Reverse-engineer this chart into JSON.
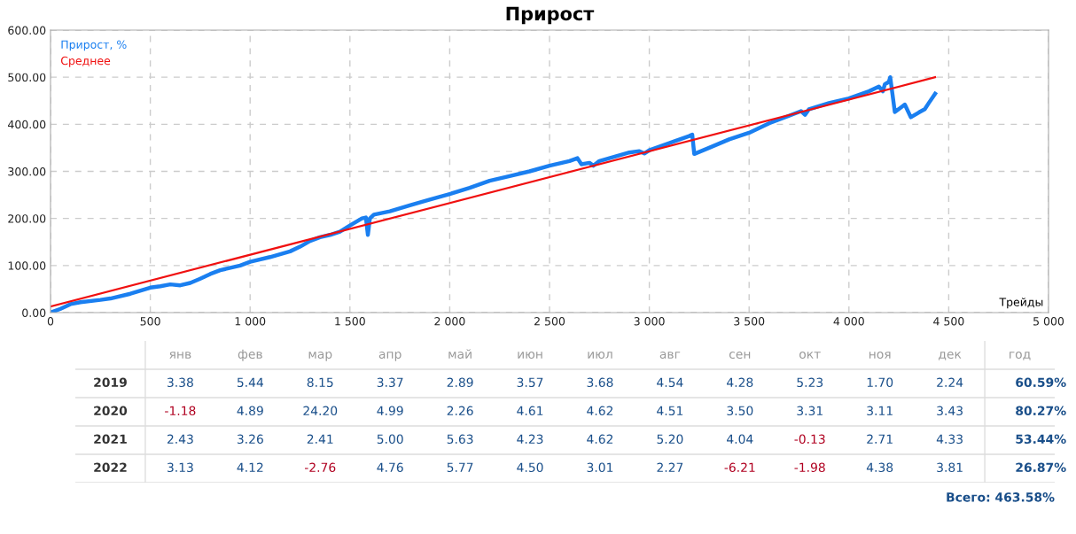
{
  "chart_data": [
    {
      "type": "line",
      "title": "Прирост",
      "xlabel": "Трейды",
      "xlim": [
        0,
        5000
      ],
      "ylim": [
        0,
        600
      ],
      "xticks": [
        0,
        500,
        {
          "value": 1000,
          "label": "1 000"
        },
        {
          "value": 1500,
          "label": "1 500"
        },
        {
          "value": 2000,
          "label": "2 000"
        },
        {
          "value": 2500,
          "label": "2 500"
        },
        {
          "value": 3000,
          "label": "3 000"
        },
        {
          "value": 3500,
          "label": "3 500"
        },
        {
          "value": 4000,
          "label": "4 000"
        },
        {
          "value": 4500,
          "label": "4 500"
        },
        {
          "value": 5000,
          "label": "5 000"
        }
      ],
      "yticks": [
        {
          "value": 0,
          "label": "0.00"
        },
        {
          "value": 100,
          "label": "100.00"
        },
        {
          "value": 200,
          "label": "200.00"
        },
        {
          "value": 300,
          "label": "300.00"
        },
        {
          "value": 400,
          "label": "400.00"
        },
        {
          "value": 500,
          "label": "500.00"
        },
        {
          "value": 600,
          "label": "600.00"
        }
      ],
      "grid": true,
      "legend": "top left",
      "line_style": "solid",
      "marker": "none",
      "series": [
        {
          "name": "Прирост, %",
          "color": "#1a7ff0",
          "x": [
            0,
            50,
            100,
            150,
            250,
            300,
            400,
            500,
            550,
            600,
            650,
            700,
            750,
            800,
            850,
            950,
            1000,
            1100,
            1200,
            1250,
            1300,
            1350,
            1400,
            1450,
            1500,
            1560,
            1580,
            1590,
            1600,
            1620,
            1700,
            1800,
            1900,
            2000,
            2100,
            2200,
            2300,
            2400,
            2500,
            2600,
            2640,
            2660,
            2700,
            2720,
            2750,
            2800,
            2900,
            2950,
            2975,
            3000,
            3100,
            3200,
            3215,
            3225,
            3300,
            3400,
            3500,
            3600,
            3700,
            3760,
            3780,
            3800,
            3900,
            4000,
            4100,
            4150,
            4170,
            4180,
            4200,
            4207,
            4230,
            4280,
            4310,
            4350,
            4380,
            4400,
            4432
          ],
          "values": [
            0,
            8,
            18,
            22,
            27,
            30,
            40,
            53,
            56,
            60,
            58,
            63,
            72,
            82,
            90,
            100,
            108,
            118,
            130,
            140,
            152,
            160,
            165,
            172,
            185,
            200,
            202,
            165,
            200,
            208,
            215,
            228,
            240,
            252,
            265,
            280,
            290,
            300,
            312,
            322,
            328,
            315,
            318,
            312,
            322,
            328,
            340,
            343,
            338,
            345,
            360,
            375,
            378,
            337,
            350,
            368,
            382,
            402,
            418,
            428,
            420,
            432,
            445,
            455,
            470,
            480,
            470,
            485,
            490,
            500,
            426,
            442,
            415,
            425,
            432,
            445,
            465
          ]
        },
        {
          "name": "Среднее",
          "color": "#f01010",
          "x": [
            0,
            4432
          ],
          "values": [
            13,
            500
          ]
        }
      ]
    },
    {
      "type": "heatmap",
      "categories": [
        "янв",
        "фев",
        "мар",
        "апр",
        "май",
        "июн",
        "июл",
        "авг",
        "сен",
        "окт",
        "ноя",
        "дек",
        "год"
      ],
      "y_categories": [
        "2019",
        "2020",
        "2021",
        "2022"
      ],
      "cells": [
        [
          3.38,
          5.44,
          8.15,
          3.37,
          2.89,
          3.57,
          3.68,
          4.54,
          4.28,
          5.23,
          1.7,
          2.24,
          60.59
        ],
        [
          -1.18,
          4.89,
          24.2,
          4.99,
          2.26,
          4.61,
          4.62,
          4.51,
          3.5,
          3.31,
          3.11,
          3.43,
          80.27
        ],
        [
          2.43,
          3.26,
          2.41,
          5.0,
          5.63,
          4.23,
          4.62,
          5.2,
          4.04,
          -0.13,
          2.71,
          4.33,
          53.44
        ],
        [
          3.13,
          4.12,
          -2.76,
          4.76,
          5.77,
          4.5,
          3.01,
          2.27,
          -6.21,
          -1.98,
          4.38,
          3.81,
          26.87
        ]
      ],
      "cell_labels": [
        [
          "3.38",
          "5.44",
          "8.15",
          "3.37",
          "2.89",
          "3.57",
          "3.68",
          "4.54",
          "4.28",
          "5.23",
          "1.70",
          "2.24",
          "60.59%"
        ],
        [
          "-1.18",
          "4.89",
          "24.20",
          "4.99",
          "2.26",
          "4.61",
          "4.62",
          "4.51",
          "3.50",
          "3.31",
          "3.11",
          "3.43",
          "80.27%"
        ],
        [
          "2.43",
          "3.26",
          "2.41",
          "5.00",
          "5.63",
          "4.23",
          "4.62",
          "5.20",
          "4.04",
          "-0.13",
          "2.71",
          "4.33",
          "53.44%"
        ],
        [
          "3.13",
          "4.12",
          "-2.76",
          "4.76",
          "5.77",
          "4.50",
          "3.01",
          "2.27",
          "-6.21",
          "-1.98",
          "4.38",
          "3.81",
          "26.87%"
        ]
      ],
      "annotations": [
        "Всего: 463.58%"
      ]
    }
  ]
}
